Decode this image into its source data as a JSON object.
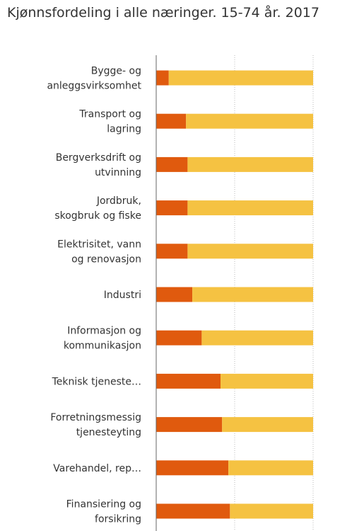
{
  "title": "Kjønnsfordeling i alle næringer. 15-74 år. 2017",
  "colors": {
    "menn": "#F5C242",
    "kvinner": "#E05A0E",
    "grid": "#BBBBBB",
    "axis": "#666666"
  },
  "chart_data": {
    "type": "bar",
    "orientation": "horizontal",
    "stacked": true,
    "title": "Kjønnsfordeling i alle næringer. 15-74 år. 2017",
    "categories": [
      "Bygge- og anleggsvirksomhet",
      "Transport og lagring",
      "Bergverksdrift og utvinning",
      "Jordbruk, skogbruk og fiske",
      "Elektrisitet, vann og renovasjon",
      "Industri",
      "Informasjon og kommunikasjon",
      "Teknisk tjeneste…",
      "Forretningsmessig tjenesteyting",
      "Varehandel, rep…",
      "Finansiering og forsikring"
    ],
    "label_lines": [
      [
        "Bygge- og",
        "anleggsvirksomhet"
      ],
      [
        "Transport og",
        "lagring"
      ],
      [
        "Bergverksdrift og",
        "utvinning"
      ],
      [
        "Jordbruk,",
        "skogbruk og fiske"
      ],
      [
        "Elektrisitet, vann",
        "og renovasjon"
      ],
      [
        "Industri"
      ],
      [
        "Informasjon og",
        "kommunikasjon"
      ],
      [
        "Teknisk tjeneste…"
      ],
      [
        "Forretningsmessig",
        "tjenesteyting"
      ],
      [
        "Varehandel, rep…"
      ],
      [
        "Finansiering og",
        "forsikring"
      ]
    ],
    "series": [
      {
        "color": "#E05A0E",
        "values": [
          8,
          19,
          20,
          20,
          20,
          23,
          29,
          41,
          42,
          46,
          47
        ]
      },
      {
        "color": "#F5C242",
        "values": [
          92,
          81,
          80,
          80,
          80,
          77,
          71,
          59,
          58,
          54,
          53
        ]
      }
    ],
    "xlim": [
      0,
      100
    ],
    "grid": true,
    "legend": "none"
  }
}
